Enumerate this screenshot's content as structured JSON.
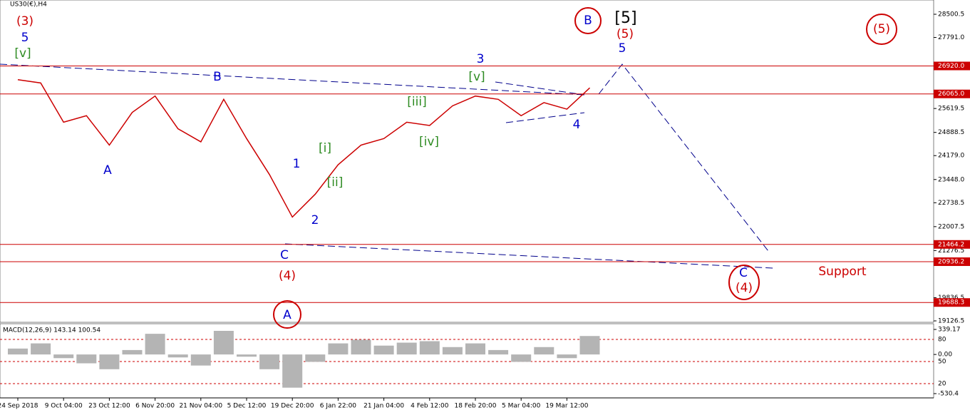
{
  "chart_data": {
    "type": "line",
    "title": "US30(€),H4",
    "categories": [
      "24 Sep 2018",
      null,
      "9 Oct 04:00",
      null,
      "23 Oct 12:00",
      null,
      "6 Nov 20:00",
      null,
      "21 Nov 04:00",
      null,
      "5 Dec 12:00",
      null,
      "19 Dec 20:00",
      null,
      "6 Jan 22:00",
      null,
      "21 Jan 04:00",
      null,
      "4 Feb 12:00",
      null,
      "18 Feb 20:00",
      null,
      "5 Mar 04:00",
      null,
      "19 Mar 12:00",
      null
    ],
    "series": [
      {
        "color": "#cc0000",
        "values": [
          26500,
          26400,
          25200,
          25400,
          24500,
          25500,
          26000,
          25000,
          24600,
          25900,
          24700,
          23600,
          22300,
          23000,
          23900,
          24500,
          24700,
          25200,
          25100,
          25700,
          26000,
          25900,
          25400,
          25800,
          25600,
          26250
        ]
      }
    ],
    "ylim": [
      19126.5,
      28500.5
    ],
    "yticks": [
      {
        "value": 28500.5,
        "label": "28500.5"
      },
      {
        "value": 27791.0,
        "label": "27791.0"
      },
      {
        "value": 25619.5,
        "label": "25619.5"
      },
      {
        "value": 24888.5,
        "label": "24888.5"
      },
      {
        "value": 24179.0,
        "label": "24179.0"
      },
      {
        "value": 23448.0,
        "label": "23448.0"
      },
      {
        "value": 22738.5,
        "label": "22738.5"
      },
      {
        "value": 22007.5,
        "label": "22007.5"
      },
      {
        "value": 21276.5,
        "label": "21276.5"
      },
      {
        "value": 19836.5,
        "label": "19836.5"
      },
      {
        "value": 19126.5,
        "label": "19126.5"
      }
    ],
    "levels": [
      {
        "value": 26920.0,
        "label": "26920.0"
      },
      {
        "value": 26065.0,
        "label": "26065.0"
      },
      {
        "value": 21464.2,
        "label": "21464.2"
      },
      {
        "value": 20936.2,
        "label": "20936.2"
      },
      {
        "value": 19688.3,
        "label": "19688.3"
      }
    ],
    "macd": {
      "title": "MACD(12,26,9) 143.14 100.54",
      "color": "#b4b4b4",
      "values": [
        80,
        150,
        -50,
        -120,
        -200,
        60,
        280,
        -40,
        -150,
        320,
        -30,
        -200,
        -450,
        -100,
        150,
        200,
        120,
        160,
        180,
        100,
        150,
        60,
        -100,
        100,
        -50,
        250
      ],
      "ylim": [
        -530.4,
        339.17
      ],
      "yticks": [
        {
          "value": 339.17,
          "label": "339.17"
        },
        {
          "value": 0,
          "label": "0.00"
        },
        {
          "value": -530.4,
          "label": "-530.4"
        }
      ],
      "level_labels": [
        "80",
        "50",
        "20"
      ]
    },
    "annotations": [
      {
        "text": "(3)",
        "color": "#cc0000"
      },
      {
        "text": "5",
        "color": "#0000cc"
      },
      {
        "text": "[v]",
        "color": "#2e8b22"
      },
      {
        "text": "A",
        "color": "#0000cc"
      },
      {
        "text": "B",
        "color": "#0000cc"
      },
      {
        "text": "C",
        "color": "#0000cc"
      },
      {
        "text": "(4)",
        "color": "#cc0000"
      },
      {
        "text": "A",
        "color": "#0000cc"
      },
      {
        "text": "1",
        "color": "#0000cc"
      },
      {
        "text": "2",
        "color": "#0000cc"
      },
      {
        "text": "[i]",
        "color": "#2e8b22"
      },
      {
        "text": "[ii]",
        "color": "#2e8b22"
      },
      {
        "text": "[iii]",
        "color": "#2e8b22"
      },
      {
        "text": "[iv]",
        "color": "#2e8b22"
      },
      {
        "text": "[v]",
        "color": "#2e8b22"
      },
      {
        "text": "3",
        "color": "#0000cc"
      },
      {
        "text": "4",
        "color": "#0000cc"
      },
      {
        "text": "B",
        "color": "#0000cc"
      },
      {
        "text": "[5]",
        "color": "#000000"
      },
      {
        "text": "(5)",
        "color": "#cc0000"
      },
      {
        "text": "5",
        "color": "#0000cc"
      },
      {
        "text": "(5)",
        "color": "#cc0000"
      },
      {
        "text": "C",
        "color": "#0000cc"
      },
      {
        "text": "(4)",
        "color": "#cc0000"
      },
      {
        "text": "Support",
        "color": "#cc0000"
      }
    ]
  }
}
